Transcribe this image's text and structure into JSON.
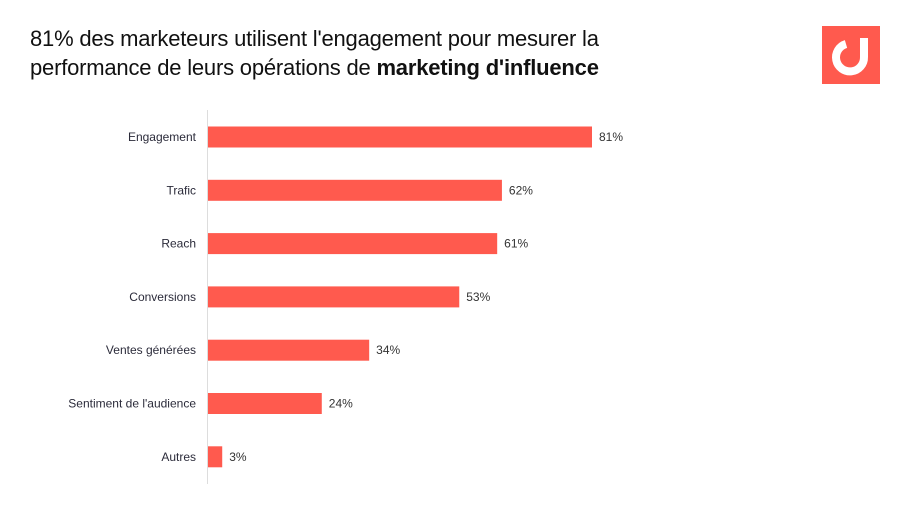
{
  "header": {
    "title_part1": "81% des marketeurs utilisent l'engagement pour mesurer la",
    "title_part2": "performance de leurs opérations de ",
    "title_bold": "marketing d'influence"
  },
  "colors": {
    "bar": "#ff5a4e",
    "logo_bg": "#ff5a4e"
  },
  "chart_data": {
    "type": "bar",
    "orientation": "horizontal",
    "title": "81% des marketeurs utilisent l'engagement pour mesurer la performance de leurs opérations de marketing d'influence",
    "categories": [
      "Engagement",
      "Trafic",
      "Reach",
      "Conversions",
      "Ventes générées",
      "Sentiment de l'audience",
      "Autres"
    ],
    "values": [
      81,
      62,
      61,
      53,
      34,
      24,
      3
    ],
    "labels": [
      "81%",
      "62%",
      "61%",
      "53%",
      "34%",
      "24%",
      "3%"
    ],
    "xlim": [
      0,
      100
    ],
    "grid": false,
    "unit": "%"
  }
}
